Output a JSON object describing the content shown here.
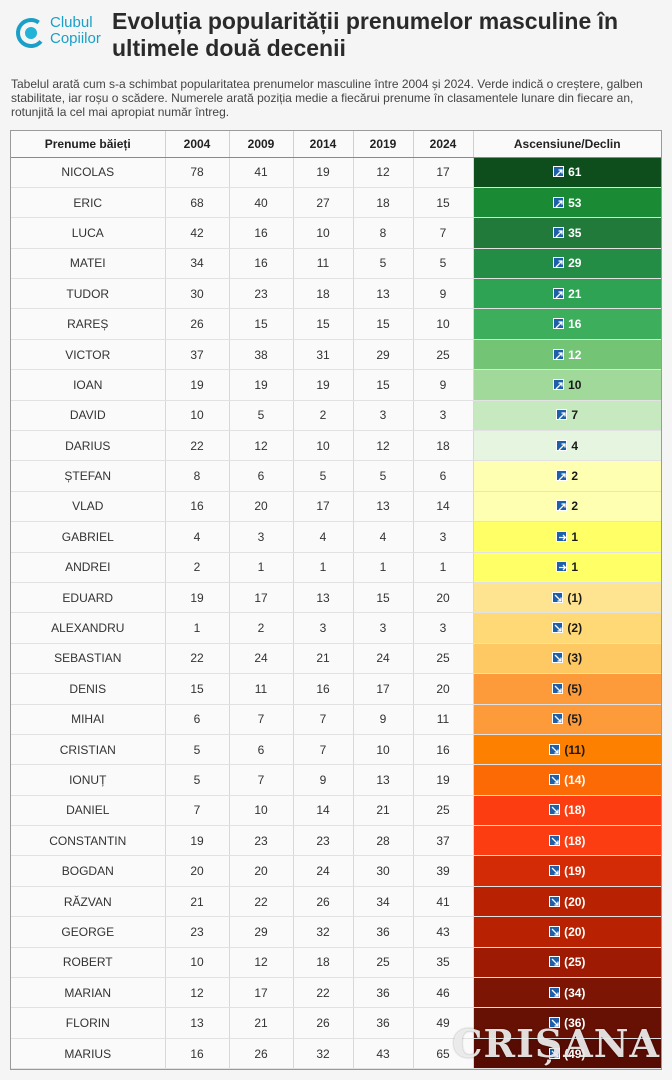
{
  "logo": {
    "line1": "Clubul",
    "line2": "Copiilor"
  },
  "title": "Evoluția popularității prenumelor masculine în ultimele două decenii",
  "subtitle": "Tabelul arată cum s-a schimbat popularitatea prenumelor masculine între 2004 și 2024. Verde indică o creștere, galben stabilitate, iar roșu o scădere. Numerele arată poziția medie a fiecărui prenume în clasamentele lunare din fiecare an, rotunjită la cel mai apropiat număr întreg.",
  "watermark": "CRIȘANA",
  "chart_data": {
    "type": "table",
    "columns": [
      "Prenume băieți",
      "2004",
      "2009",
      "2014",
      "2019",
      "2024",
      "Ascensiune/Declin"
    ],
    "rows": [
      {
        "name": "NICOLAS",
        "values": [
          78,
          41,
          19,
          12,
          17
        ],
        "change": "61",
        "dir": "up",
        "color": "#0e4d1c",
        "text": "#ffffff"
      },
      {
        "name": "ERIC",
        "values": [
          68,
          40,
          27,
          18,
          15
        ],
        "change": "53",
        "dir": "up",
        "color": "#1a8b34",
        "text": "#ffffff"
      },
      {
        "name": "LUCA",
        "values": [
          42,
          16,
          10,
          8,
          7
        ],
        "change": "35",
        "dir": "up",
        "color": "#227a3a",
        "text": "#ffffff"
      },
      {
        "name": "MATEI",
        "values": [
          34,
          16,
          11,
          5,
          5
        ],
        "change": "29",
        "dir": "up",
        "color": "#238c45",
        "text": "#ffffff"
      },
      {
        "name": "TUDOR",
        "values": [
          30,
          23,
          18,
          13,
          9
        ],
        "change": "21",
        "dir": "up",
        "color": "#2ea354",
        "text": "#ffffff"
      },
      {
        "name": "RAREȘ",
        "values": [
          26,
          15,
          15,
          15,
          10
        ],
        "change": "16",
        "dir": "up",
        "color": "#3dae5c",
        "text": "#ffffff"
      },
      {
        "name": "VICTOR",
        "values": [
          37,
          38,
          31,
          29,
          25
        ],
        "change": "12",
        "dir": "up",
        "color": "#74c476",
        "text": "#ffffff"
      },
      {
        "name": "IOAN",
        "values": [
          19,
          19,
          19,
          15,
          9
        ],
        "change": "10",
        "dir": "up",
        "color": "#a1d99b",
        "text": "#1a1a1a"
      },
      {
        "name": "DAVID",
        "values": [
          10,
          5,
          2,
          3,
          3
        ],
        "change": "7",
        "dir": "up",
        "color": "#c7e9c0",
        "text": "#1a1a1a"
      },
      {
        "name": "DARIUS",
        "values": [
          22,
          12,
          10,
          12,
          18
        ],
        "change": "4",
        "dir": "up",
        "color": "#e5f5e0",
        "text": "#1a1a1a"
      },
      {
        "name": "ȘTEFAN",
        "values": [
          8,
          6,
          5,
          5,
          6
        ],
        "change": "2",
        "dir": "up",
        "color": "#ffffb2",
        "text": "#1a1a1a"
      },
      {
        "name": "VLAD",
        "values": [
          16,
          20,
          17,
          13,
          14
        ],
        "change": "2",
        "dir": "up",
        "color": "#ffffb2",
        "text": "#1a1a1a"
      },
      {
        "name": "GABRIEL",
        "values": [
          4,
          3,
          4,
          4,
          3
        ],
        "change": "1",
        "dir": "flat",
        "color": "#ffff66",
        "text": "#1a1a1a"
      },
      {
        "name": "ANDREI",
        "values": [
          2,
          1,
          1,
          1,
          1
        ],
        "change": "1",
        "dir": "flat",
        "color": "#ffff66",
        "text": "#1a1a1a"
      },
      {
        "name": "EDUARD",
        "values": [
          19,
          17,
          13,
          15,
          20
        ],
        "change": "(1)",
        "dir": "down",
        "color": "#fee391",
        "text": "#1a1a1a"
      },
      {
        "name": "ALEXANDRU",
        "values": [
          1,
          2,
          3,
          3,
          3
        ],
        "change": "(2)",
        "dir": "down",
        "color": "#fed976",
        "text": "#1a1a1a"
      },
      {
        "name": "SEBASTIAN",
        "values": [
          22,
          24,
          21,
          24,
          25
        ],
        "change": "(3)",
        "dir": "down",
        "color": "#fec862",
        "text": "#1a1a1a"
      },
      {
        "name": "DENIS",
        "values": [
          15,
          11,
          16,
          17,
          20
        ],
        "change": "(5)",
        "dir": "down",
        "color": "#fd9a3a",
        "text": "#1a1a1a"
      },
      {
        "name": "MIHAI",
        "values": [
          6,
          7,
          7,
          9,
          11
        ],
        "change": "(5)",
        "dir": "down",
        "color": "#fd9a3a",
        "text": "#1a1a1a"
      },
      {
        "name": "CRISTIAN",
        "values": [
          5,
          6,
          7,
          10,
          16
        ],
        "change": "(11)",
        "dir": "down",
        "color": "#fd8000",
        "text": "#1a1a1a"
      },
      {
        "name": "IONUȚ",
        "values": [
          5,
          7,
          9,
          13,
          19
        ],
        "change": "(14)",
        "dir": "down",
        "color": "#fc6a05",
        "text": "#ffffff"
      },
      {
        "name": "DANIEL",
        "values": [
          7,
          10,
          14,
          21,
          25
        ],
        "change": "(18)",
        "dir": "down",
        "color": "#fc3d12",
        "text": "#ffffff"
      },
      {
        "name": "CONSTANTIN",
        "values": [
          19,
          23,
          23,
          28,
          37
        ],
        "change": "(18)",
        "dir": "down",
        "color": "#fc3d12",
        "text": "#ffffff"
      },
      {
        "name": "BOGDAN",
        "values": [
          20,
          20,
          24,
          30,
          39
        ],
        "change": "(19)",
        "dir": "down",
        "color": "#d42b07",
        "text": "#ffffff"
      },
      {
        "name": "RĂZVAN",
        "values": [
          21,
          22,
          26,
          34,
          41
        ],
        "change": "(20)",
        "dir": "down",
        "color": "#b82202",
        "text": "#ffffff"
      },
      {
        "name": "GEORGE",
        "values": [
          23,
          29,
          32,
          36,
          43
        ],
        "change": "(20)",
        "dir": "down",
        "color": "#b82202",
        "text": "#ffffff"
      },
      {
        "name": "ROBERT",
        "values": [
          10,
          12,
          18,
          25,
          35
        ],
        "change": "(25)",
        "dir": "down",
        "color": "#9e1a03",
        "text": "#ffffff"
      },
      {
        "name": "MARIAN",
        "values": [
          12,
          17,
          22,
          36,
          46
        ],
        "change": "(34)",
        "dir": "down",
        "color": "#7c1504",
        "text": "#ffffff"
      },
      {
        "name": "FLORIN",
        "values": [
          13,
          21,
          26,
          36,
          49
        ],
        "change": "(36)",
        "dir": "down",
        "color": "#671104",
        "text": "#ffffff"
      },
      {
        "name": "MARIUS",
        "values": [
          16,
          26,
          32,
          43,
          65
        ],
        "change": "(49)",
        "dir": "down",
        "color": "#560c03",
        "text": "#ffffff"
      }
    ]
  }
}
